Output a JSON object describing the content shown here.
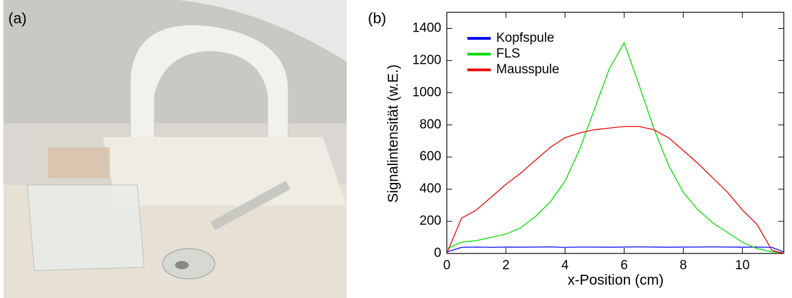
{
  "panel_labels": [
    "(a)",
    "(b)"
  ],
  "chart_data": {
    "type": "line",
    "xlabel": "x-Position (cm)",
    "ylabel": "Signalintensität (w.E.)",
    "x": [
      0,
      0.5,
      1,
      1.5,
      2,
      2.5,
      3,
      3.5,
      4,
      4.5,
      5,
      5.5,
      6,
      6.5,
      7,
      7.5,
      8,
      8.5,
      9,
      9.5,
      10,
      10.5,
      11,
      11.4
    ],
    "series": [
      {
        "name": "Kopfspule",
        "color": "#0000ff",
        "values": [
          10,
          38,
          40,
          38,
          40,
          39,
          40,
          41,
          38,
          40,
          40,
          39,
          40,
          41,
          40,
          39,
          40,
          40,
          41,
          40,
          39,
          40,
          38,
          10
        ]
      },
      {
        "name": "FLS",
        "color": "#00dd00",
        "values": [
          30,
          70,
          80,
          100,
          120,
          160,
          230,
          320,
          450,
          650,
          900,
          1150,
          1310,
          1050,
          780,
          550,
          380,
          270,
          190,
          130,
          70,
          30,
          10,
          5
        ]
      },
      {
        "name": "Mausspule",
        "color": "#ee0000",
        "values": [
          0,
          220,
          270,
          350,
          430,
          500,
          580,
          660,
          720,
          750,
          770,
          780,
          790,
          790,
          770,
          720,
          640,
          560,
          470,
          380,
          270,
          180,
          20,
          0
        ]
      }
    ],
    "xlim": [
      0,
      11.4
    ],
    "xticks": [
      0,
      2,
      4,
      6,
      8,
      10
    ],
    "ylim": [
      0,
      1500
    ],
    "yticks": [
      0,
      200,
      400,
      600,
      800,
      1000,
      1200,
      1400
    ],
    "legend": "upper-left"
  }
}
